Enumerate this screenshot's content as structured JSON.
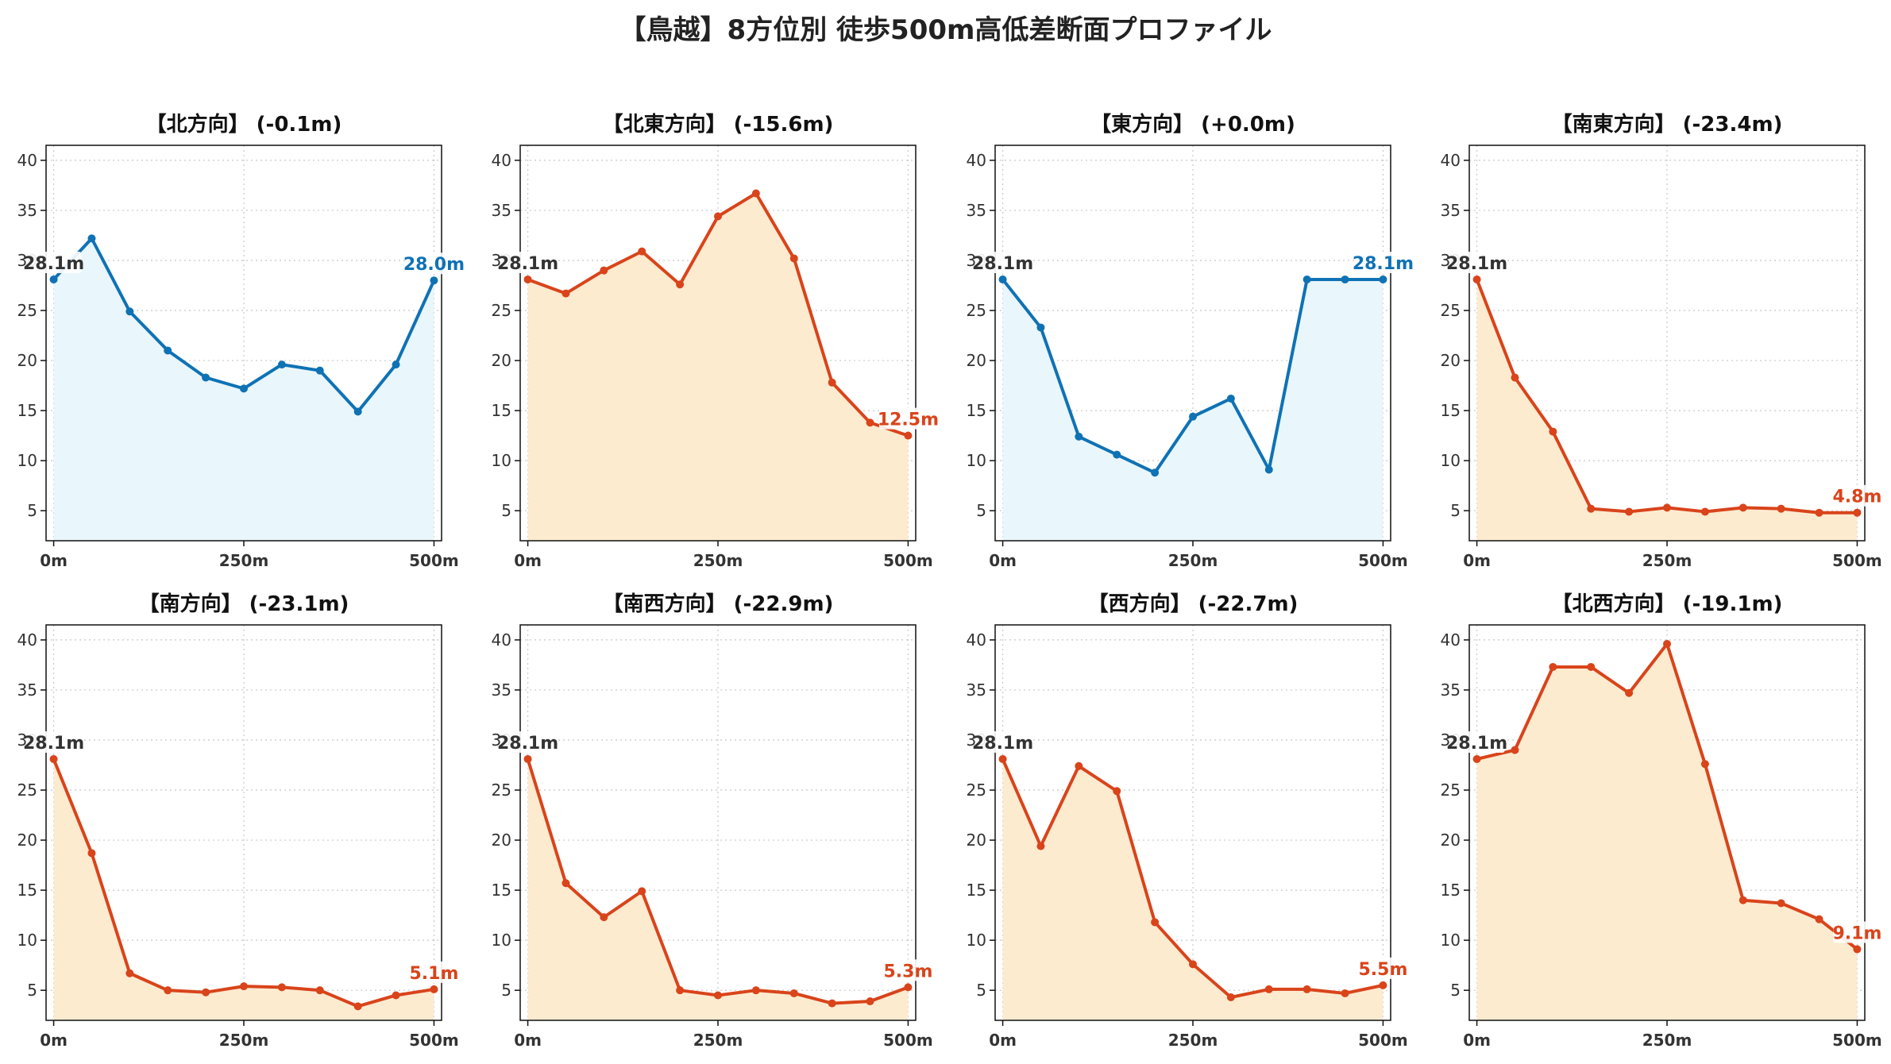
{
  "title": "【鳥越】8方位別 徒歩500m高低差断面プロファイル",
  "colors": {
    "up_line": "#0f72b5",
    "up_fill": "#e9f6fb",
    "down_line": "#d9441b",
    "down_fill": "#fdebd0",
    "start_label": "#333333"
  },
  "x_tick_labels": [
    "0m",
    "250m",
    "500m"
  ],
  "chart_data": [
    {
      "type": "area",
      "title": "【北方向】 (-0.1m)",
      "x": [
        0,
        50,
        100,
        150,
        200,
        250,
        300,
        350,
        400,
        450,
        500
      ],
      "series": [
        {
          "values": [
            28.1,
            32.2,
            24.9,
            21.0,
            18.3,
            17.2,
            19.6,
            19.0,
            14.9,
            19.6,
            28.0
          ]
        }
      ],
      "start_label": "28.1m",
      "end_label": "28.0m",
      "trend": "up",
      "xlim": [
        -10,
        510
      ],
      "ylim": [
        2,
        41.5
      ],
      "yticks": [
        5,
        10,
        15,
        20,
        25,
        30,
        35,
        40
      ],
      "xticks": [
        0,
        250,
        500
      ],
      "grid": true
    },
    {
      "type": "area",
      "title": "【北東方向】 (-15.6m)",
      "x": [
        0,
        50,
        100,
        150,
        200,
        250,
        300,
        350,
        400,
        450,
        500
      ],
      "series": [
        {
          "values": [
            28.1,
            26.7,
            29.0,
            30.9,
            27.6,
            34.4,
            36.7,
            30.2,
            17.8,
            13.8,
            12.5
          ]
        }
      ],
      "start_label": "28.1m",
      "end_label": "12.5m",
      "trend": "down",
      "xlim": [
        -10,
        510
      ],
      "ylim": [
        2,
        41.5
      ],
      "yticks": [
        5,
        10,
        15,
        20,
        25,
        30,
        35,
        40
      ],
      "xticks": [
        0,
        250,
        500
      ],
      "grid": true
    },
    {
      "type": "area",
      "title": "【東方向】 (+0.0m)",
      "x": [
        0,
        50,
        100,
        150,
        200,
        250,
        300,
        350,
        400,
        450,
        500
      ],
      "series": [
        {
          "values": [
            28.1,
            23.3,
            12.4,
            10.6,
            8.8,
            14.4,
            16.2,
            9.1,
            28.1,
            28.1,
            28.1
          ]
        }
      ],
      "start_label": "28.1m",
      "end_label": "28.1m",
      "trend": "up",
      "xlim": [
        -10,
        510
      ],
      "ylim": [
        2,
        41.5
      ],
      "yticks": [
        5,
        10,
        15,
        20,
        25,
        30,
        35,
        40
      ],
      "xticks": [
        0,
        250,
        500
      ],
      "grid": true
    },
    {
      "type": "area",
      "title": "【南東方向】 (-23.4m)",
      "x": [
        0,
        50,
        100,
        150,
        200,
        250,
        300,
        350,
        400,
        450,
        500
      ],
      "series": [
        {
          "values": [
            28.1,
            18.3,
            12.9,
            5.2,
            4.9,
            5.3,
            4.9,
            5.3,
            5.2,
            4.8,
            4.8
          ]
        }
      ],
      "start_label": "28.1m",
      "end_label": "4.8m",
      "trend": "down",
      "xlim": [
        -10,
        510
      ],
      "ylim": [
        2,
        41.5
      ],
      "yticks": [
        5,
        10,
        15,
        20,
        25,
        30,
        35,
        40
      ],
      "xticks": [
        0,
        250,
        500
      ],
      "grid": true
    },
    {
      "type": "area",
      "title": "【南方向】 (-23.1m)",
      "x": [
        0,
        50,
        100,
        150,
        200,
        250,
        300,
        350,
        400,
        450,
        500
      ],
      "series": [
        {
          "values": [
            28.1,
            18.7,
            6.7,
            5.0,
            4.8,
            5.4,
            5.3,
            5.0,
            3.4,
            4.5,
            5.1
          ]
        }
      ],
      "start_label": "28.1m",
      "end_label": "5.1m",
      "trend": "down",
      "xlim": [
        -10,
        510
      ],
      "ylim": [
        2,
        41.5
      ],
      "yticks": [
        5,
        10,
        15,
        20,
        25,
        30,
        35,
        40
      ],
      "xticks": [
        0,
        250,
        500
      ],
      "grid": true
    },
    {
      "type": "area",
      "title": "【南西方向】 (-22.9m)",
      "x": [
        0,
        50,
        100,
        150,
        200,
        250,
        300,
        350,
        400,
        450,
        500
      ],
      "series": [
        {
          "values": [
            28.1,
            15.7,
            12.3,
            14.9,
            5.0,
            4.5,
            5.0,
            4.7,
            3.7,
            3.9,
            5.3
          ]
        }
      ],
      "start_label": "28.1m",
      "end_label": "5.3m",
      "trend": "down",
      "xlim": [
        -10,
        510
      ],
      "ylim": [
        2,
        41.5
      ],
      "yticks": [
        5,
        10,
        15,
        20,
        25,
        30,
        35,
        40
      ],
      "xticks": [
        0,
        250,
        500
      ],
      "grid": true
    },
    {
      "type": "area",
      "title": "【西方向】 (-22.7m)",
      "x": [
        0,
        50,
        100,
        150,
        200,
        250,
        300,
        350,
        400,
        450,
        500
      ],
      "series": [
        {
          "values": [
            28.1,
            19.4,
            27.4,
            24.9,
            11.8,
            7.6,
            4.3,
            5.1,
            5.1,
            4.7,
            5.5
          ]
        }
      ],
      "start_label": "28.1m",
      "end_label": "5.5m",
      "trend": "down",
      "xlim": [
        -10,
        510
      ],
      "ylim": [
        2,
        41.5
      ],
      "yticks": [
        5,
        10,
        15,
        20,
        25,
        30,
        35,
        40
      ],
      "xticks": [
        0,
        250,
        500
      ],
      "grid": true
    },
    {
      "type": "area",
      "title": "【北西方向】 (-19.1m)",
      "x": [
        0,
        50,
        100,
        150,
        200,
        250,
        300,
        350,
        400,
        450,
        500
      ],
      "series": [
        {
          "values": [
            28.1,
            29.0,
            37.3,
            37.3,
            34.7,
            39.6,
            27.6,
            14.0,
            13.7,
            12.1,
            9.1
          ]
        }
      ],
      "start_label": "28.1m",
      "end_label": "9.1m",
      "trend": "down",
      "xlim": [
        -10,
        510
      ],
      "ylim": [
        2,
        41.5
      ],
      "yticks": [
        5,
        10,
        15,
        20,
        25,
        30,
        35,
        40
      ],
      "xticks": [
        0,
        250,
        500
      ],
      "grid": true
    }
  ]
}
